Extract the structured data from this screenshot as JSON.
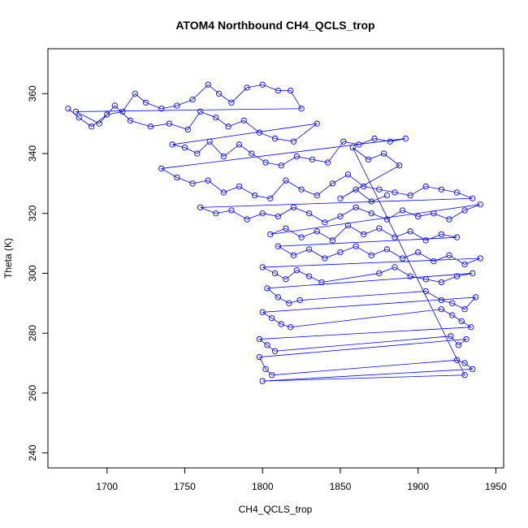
{
  "chart_data": {
    "type": "scatter",
    "title": "ATOM4 Northbound CH4_QCLS_trop",
    "xlabel": "CH4_QCLS_trop",
    "ylabel": "Theta (K)",
    "xlim": [
      1662,
      1955
    ],
    "ylim": [
      235,
      375
    ],
    "xticks": [
      1700,
      1750,
      1800,
      1850,
      1900,
      1950
    ],
    "yticks": [
      240,
      260,
      280,
      300,
      320,
      340,
      360
    ],
    "marker": "open-circle",
    "connected": true,
    "series_color": "#0000ff",
    "series": [
      {
        "name": "",
        "x": [
          1675,
          1682,
          1690,
          1700,
          1710,
          1718,
          1725,
          1735,
          1745,
          1755,
          1765,
          1772,
          1780,
          1790,
          1800,
          1810,
          1818,
          1825,
          1680,
          1695,
          1705,
          1715,
          1728,
          1740,
          1752,
          1760,
          1770,
          1778,
          1788,
          1798,
          1808,
          1820,
          1835,
          1742,
          1750,
          1758,
          1766,
          1775,
          1785,
          1793,
          1802,
          1812,
          1822,
          1832,
          1842,
          1852,
          1862,
          1872,
          1882,
          1892,
          1735,
          1745,
          1755,
          1765,
          1775,
          1785,
          1795,
          1805,
          1815,
          1825,
          1835,
          1845,
          1855,
          1865,
          1875,
          1885,
          1895,
          1905,
          1915,
          1925,
          1935,
          1760,
          1770,
          1780,
          1790,
          1800,
          1810,
          1820,
          1830,
          1840,
          1850,
          1860,
          1870,
          1880,
          1890,
          1900,
          1910,
          1920,
          1930,
          1940,
          1805,
          1815,
          1825,
          1835,
          1845,
          1855,
          1865,
          1875,
          1885,
          1895,
          1905,
          1915,
          1925,
          1810,
          1820,
          1830,
          1840,
          1850,
          1860,
          1870,
          1880,
          1890,
          1900,
          1910,
          1920,
          1930,
          1940,
          1800,
          1808,
          1815,
          1822,
          1830,
          1838,
          1875,
          1885,
          1895,
          1905,
          1915,
          1925,
          1935,
          1803,
          1810,
          1817,
          1824,
          1905,
          1915,
          1922,
          1930,
          1937,
          1800,
          1806,
          1812,
          1818,
          1915,
          1922,
          1928,
          1934,
          1798,
          1803,
          1808,
          1921,
          1926,
          1931,
          1798,
          1802,
          1806,
          1925,
          1930,
          1935,
          1800,
          1930,
          1858,
          1868,
          1878,
          1888,
          1850,
          1860,
          1870,
          1880
        ],
        "y": [
          355,
          352,
          349,
          353,
          354,
          360,
          357,
          355,
          356,
          358,
          363,
          360,
          357,
          362,
          363,
          361,
          361,
          355,
          354,
          350,
          356,
          351,
          349,
          350,
          348,
          354,
          352,
          349,
          351,
          347,
          345,
          344,
          350,
          343,
          342,
          340,
          344,
          339,
          343,
          340,
          337,
          336,
          339,
          338,
          337,
          344,
          343,
          345,
          344,
          345,
          335,
          332,
          330,
          331,
          327,
          329,
          326,
          325,
          331,
          328,
          326,
          330,
          333,
          329,
          328,
          327,
          326,
          329,
          328,
          327,
          325,
          322,
          320,
          321,
          318,
          320,
          319,
          322,
          320,
          317,
          319,
          322,
          320,
          318,
          321,
          319,
          320,
          318,
          321,
          323,
          313,
          315,
          312,
          314,
          311,
          316,
          313,
          315,
          312,
          314,
          311,
          313,
          312,
          309,
          306,
          308,
          305,
          307,
          309,
          306,
          308,
          305,
          307,
          304,
          306,
          303,
          305,
          302,
          300,
          298,
          301,
          299,
          297,
          300,
          302,
          299,
          298,
          297,
          299,
          300,
          295,
          292,
          290,
          291,
          294,
          291,
          290,
          288,
          292,
          287,
          285,
          283,
          282,
          288,
          286,
          284,
          282,
          278,
          276,
          274,
          279,
          276,
          278,
          272,
          268,
          266,
          271,
          270,
          268,
          264,
          266,
          342,
          338,
          340,
          336,
          325,
          328,
          324,
          326
        ]
      }
    ]
  }
}
